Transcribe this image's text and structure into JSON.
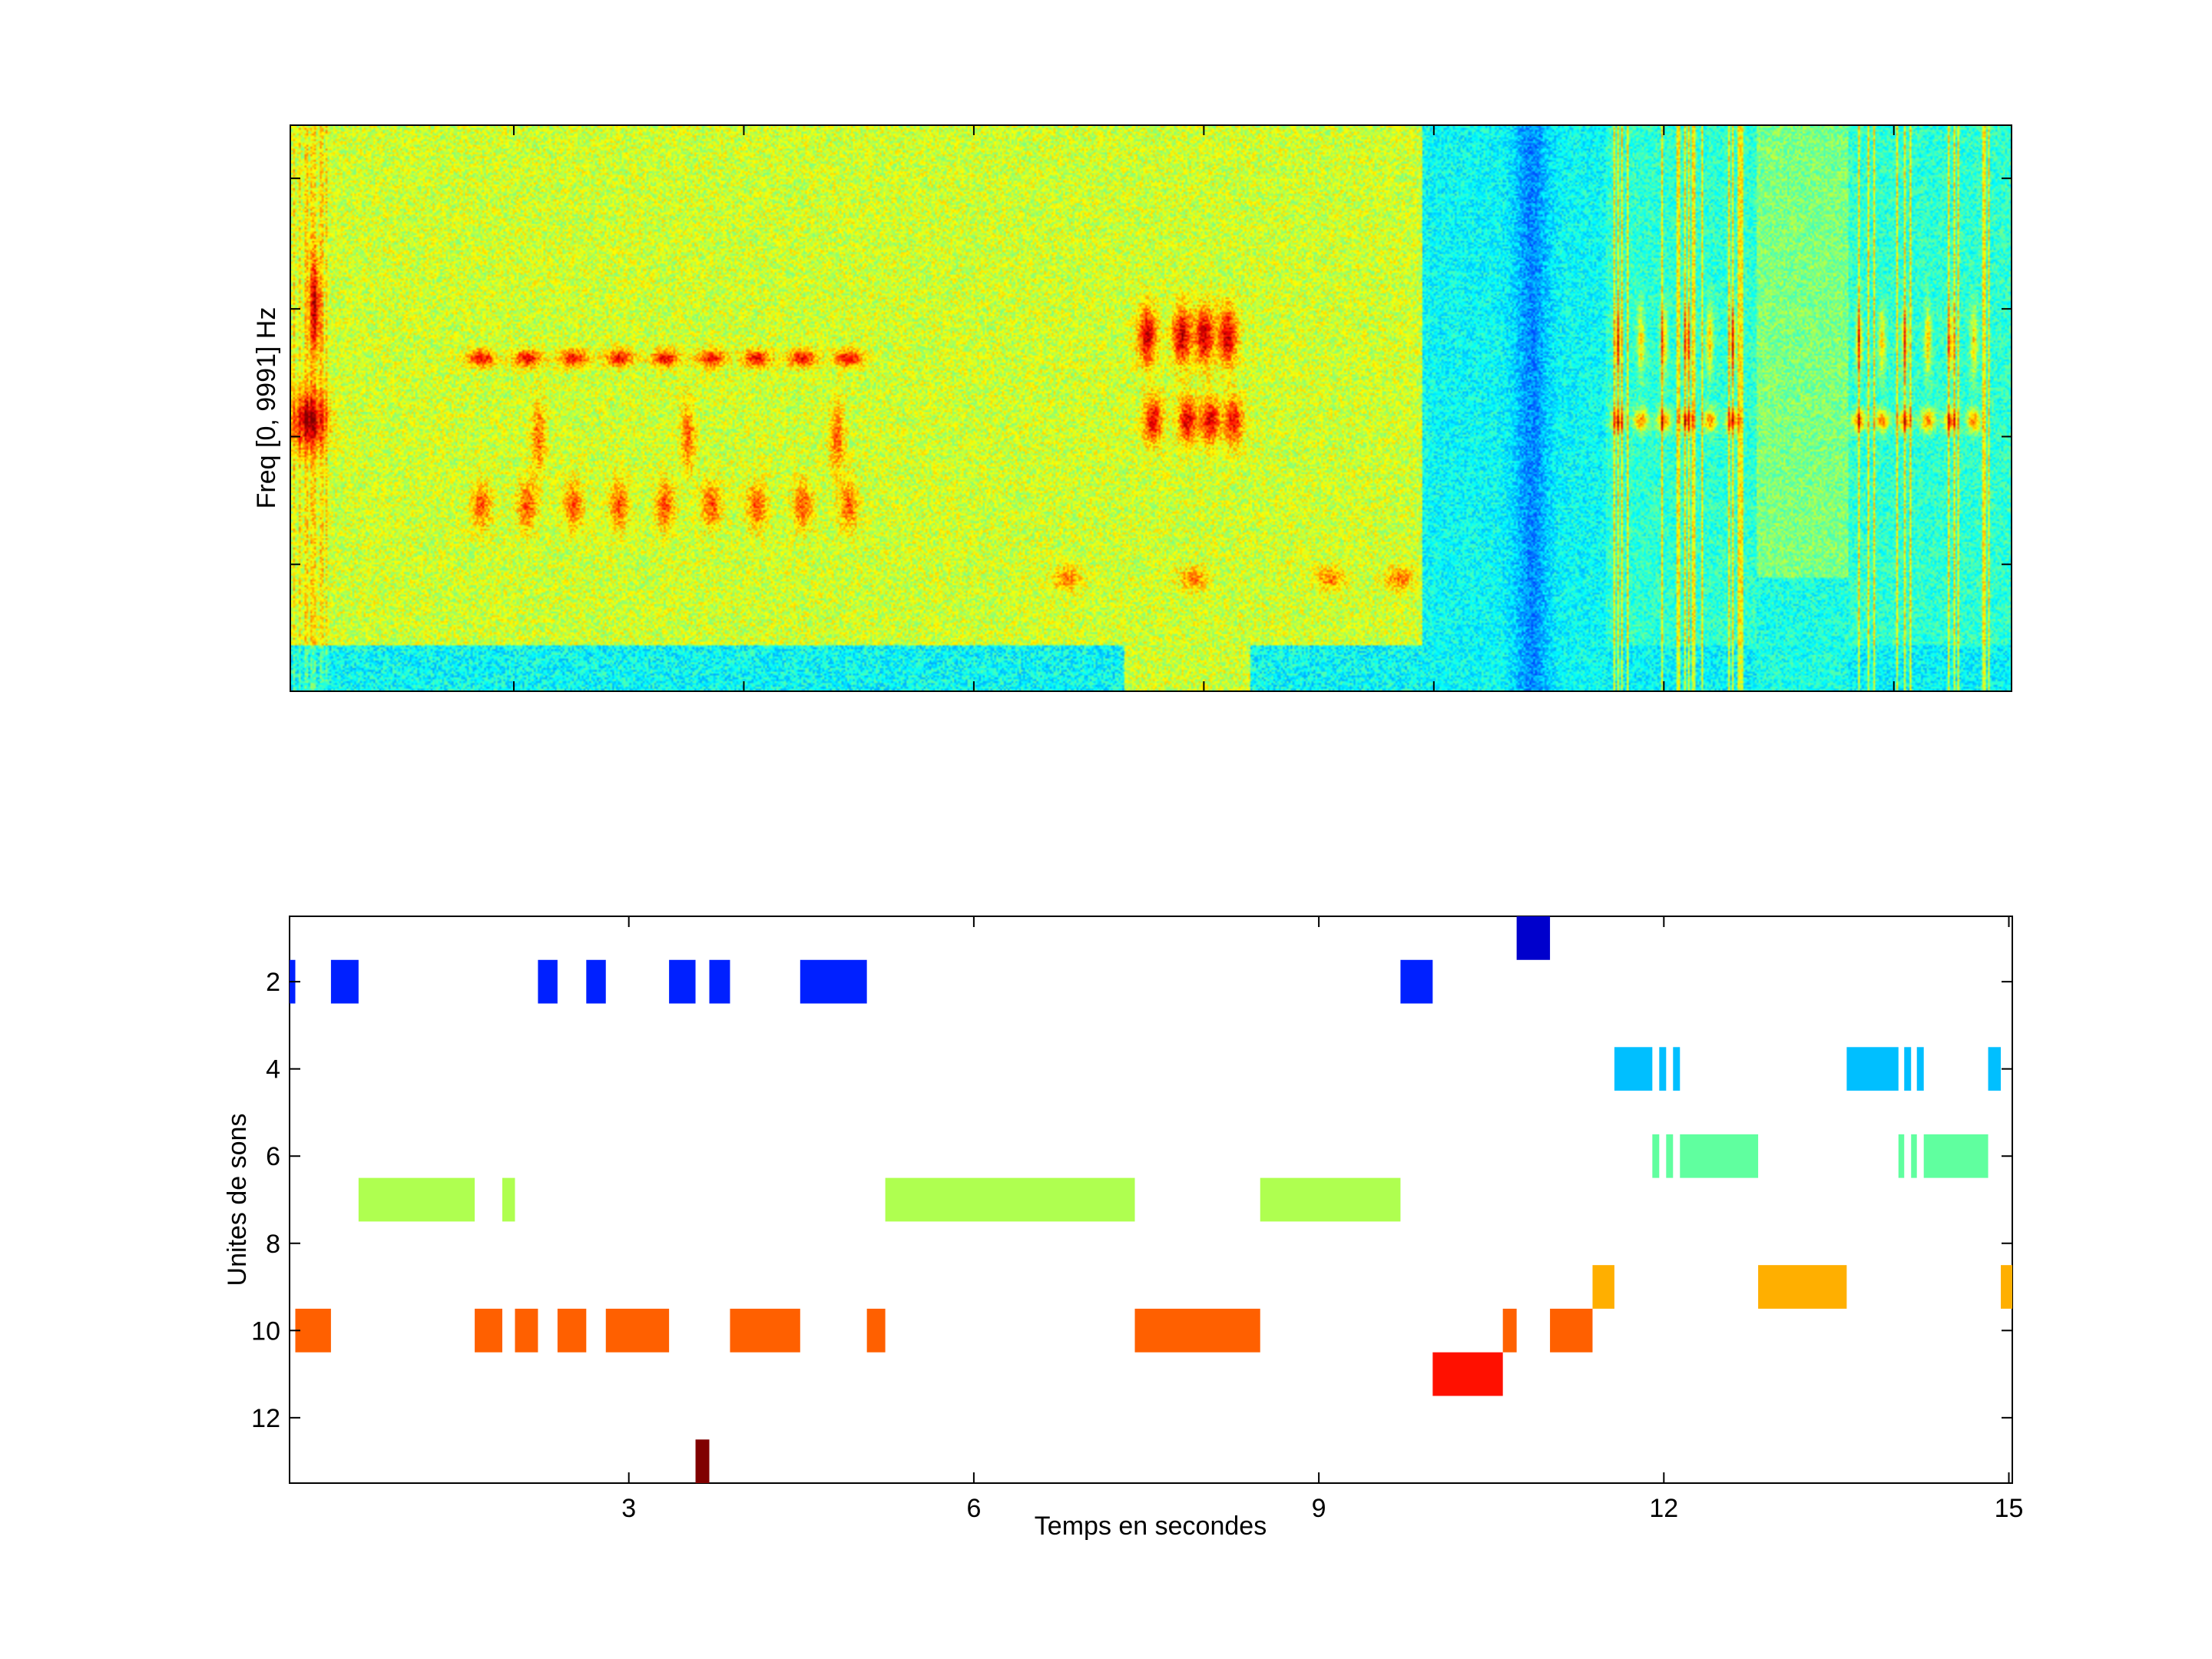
{
  "spectrogram": {
    "ylabel": "Freq [0, 9991] Hz",
    "xlim": [
      0.05,
      15.03
    ],
    "xticks": [
      2,
      4,
      6,
      8,
      10,
      12,
      14
    ],
    "yticks_fraction": [
      0.225,
      0.45,
      0.675,
      0.905
    ]
  },
  "chart_data": {
    "type": "timeline",
    "title": "",
    "xlabel": "Temps en secondes",
    "ylabel": "Unites de sons",
    "xlim": [
      0.05,
      15.03
    ],
    "ylim": [
      0.5,
      13.5
    ],
    "y_reversed": true,
    "xticks": [
      3,
      6,
      9,
      12,
      15
    ],
    "yticks": [
      2,
      4,
      6,
      8,
      10,
      12
    ],
    "series": [
      {
        "unit": 1,
        "color": "#0000cc",
        "segments": [
          [
            10.72,
            11.01
          ]
        ]
      },
      {
        "unit": 2,
        "color": "#0020ff",
        "segments": [
          [
            0.05,
            0.1
          ],
          [
            0.41,
            0.65
          ],
          [
            2.21,
            2.38
          ],
          [
            2.63,
            2.8
          ],
          [
            3.35,
            3.58
          ],
          [
            3.7,
            3.88
          ],
          [
            4.49,
            5.07
          ],
          [
            9.71,
            9.99
          ]
        ]
      },
      {
        "unit": 4,
        "color": "#00bfff",
        "segments": [
          [
            11.57,
            11.9
          ],
          [
            11.96,
            12.02
          ],
          [
            12.08,
            12.14
          ],
          [
            13.59,
            14.04
          ],
          [
            14.09,
            14.15
          ],
          [
            14.2,
            14.26
          ],
          [
            14.82,
            14.93
          ]
        ]
      },
      {
        "unit": 6,
        "color": "#60ff9f",
        "segments": [
          [
            11.9,
            11.96
          ],
          [
            12.02,
            12.08
          ],
          [
            12.14,
            12.82
          ],
          [
            14.04,
            14.09
          ],
          [
            14.15,
            14.2
          ],
          [
            14.26,
            14.82
          ]
        ]
      },
      {
        "unit": 7,
        "color": "#afff50",
        "segments": [
          [
            0.65,
            1.66
          ],
          [
            1.9,
            2.01
          ],
          [
            5.23,
            7.4
          ],
          [
            8.49,
            9.71
          ]
        ]
      },
      {
        "unit": 9,
        "color": "#ffaf00",
        "segments": [
          [
            11.38,
            11.57
          ],
          [
            12.82,
            13.59
          ],
          [
            14.93,
            15.03
          ]
        ]
      },
      {
        "unit": 10,
        "color": "#ff6000",
        "segments": [
          [
            0.1,
            0.41
          ],
          [
            1.66,
            1.9
          ],
          [
            2.01,
            2.21
          ],
          [
            2.38,
            2.63
          ],
          [
            2.8,
            3.35
          ],
          [
            3.88,
            4.49
          ],
          [
            5.07,
            5.23
          ],
          [
            7.4,
            8.49
          ],
          [
            10.6,
            10.72
          ],
          [
            11.01,
            11.38
          ]
        ]
      },
      {
        "unit": 11,
        "color": "#ff1000",
        "segments": [
          [
            9.99,
            10.6
          ]
        ]
      },
      {
        "unit": 13,
        "color": "#800000",
        "segments": [
          [
            3.58,
            3.7
          ]
        ]
      }
    ]
  }
}
